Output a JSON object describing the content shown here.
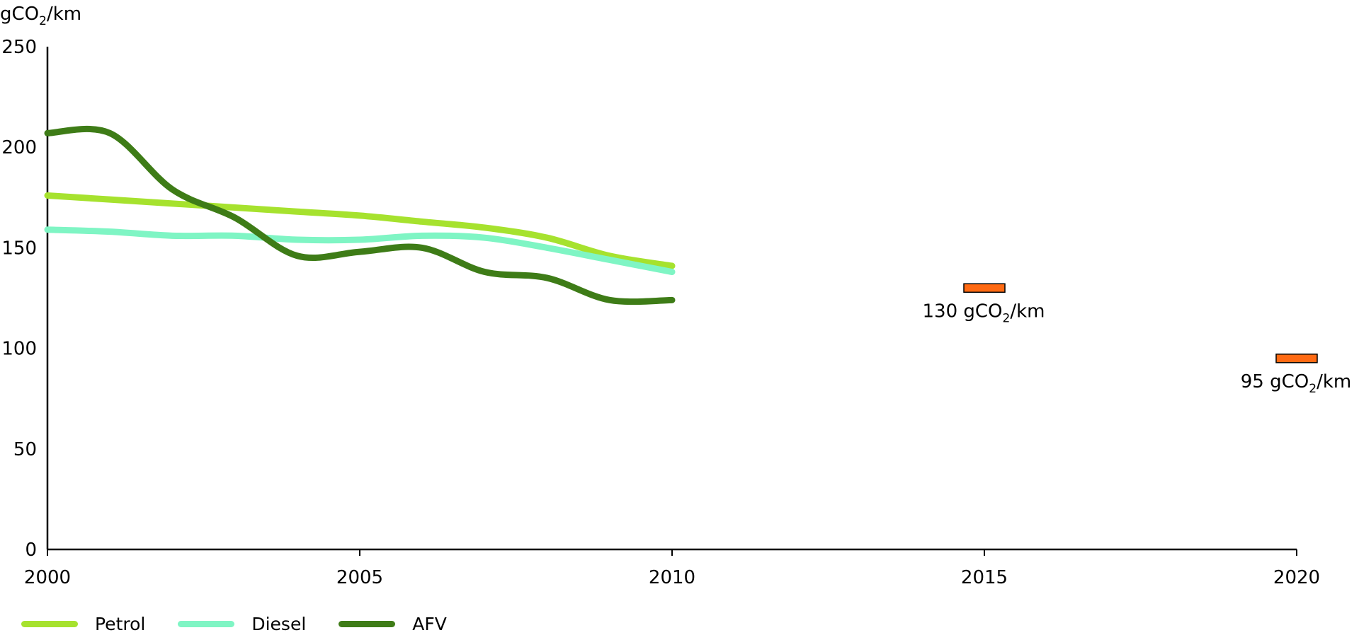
{
  "chart_data": {
    "type": "line",
    "ylabel": "gCO2/km",
    "ylabel_parts": {
      "base": "gCO",
      "sub": "2",
      "rest": "/km"
    },
    "ylim": [
      0,
      250
    ],
    "xlim": [
      2000,
      2020
    ],
    "yticks": [
      0,
      50,
      100,
      150,
      200,
      250
    ],
    "xticks": [
      2000,
      2005,
      2010,
      2015,
      2020
    ],
    "grid": false,
    "legend_position": "bottom-left",
    "series": [
      {
        "name": "Petrol",
        "color": "#a6e22e",
        "x": [
          2000,
          2001,
          2002,
          2003,
          2004,
          2005,
          2006,
          2007,
          2008,
          2009,
          2010
        ],
        "values": [
          176,
          174,
          172,
          170,
          168,
          166,
          163,
          160,
          155,
          146,
          141
        ]
      },
      {
        "name": "Diesel",
        "color": "#7ff5c4",
        "x": [
          2000,
          2001,
          2002,
          2003,
          2004,
          2005,
          2006,
          2007,
          2008,
          2009,
          2010
        ],
        "values": [
          159,
          158,
          156,
          156,
          154,
          154,
          156,
          155,
          150,
          144,
          138
        ]
      },
      {
        "name": "AFV",
        "color": "#3e7c17",
        "x": [
          2000,
          2001,
          2002,
          2003,
          2004,
          2005,
          2006,
          2007,
          2008,
          2009,
          2010
        ],
        "values": [
          207,
          207,
          179,
          165,
          146,
          148,
          150,
          138,
          135,
          124,
          124
        ]
      }
    ],
    "targets": [
      {
        "year": 2015,
        "value": 130,
        "label_value": "130",
        "label_parts": {
          "base": "gCO",
          "sub": "2",
          "rest": "/km"
        },
        "color": "#ff6a13"
      },
      {
        "year": 2020,
        "value": 95,
        "label_value": "95",
        "label_parts": {
          "base": "gCO",
          "sub": "2",
          "rest": "/km"
        },
        "color": "#ff6a13"
      }
    ]
  }
}
